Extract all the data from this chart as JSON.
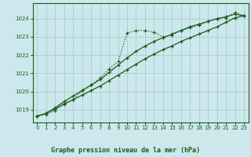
{
  "bg_color": "#cce8ec",
  "grid_color": "#aaccd4",
  "line_color": "#1a5c1a",
  "title": "Graphe pression niveau de la mer (hPa)",
  "xlim": [
    -0.5,
    23.5
  ],
  "ylim": [
    1018.3,
    1024.85
  ],
  "yticks": [
    1019,
    1020,
    1021,
    1022,
    1023,
    1024
  ],
  "xticks": [
    0,
    1,
    2,
    3,
    4,
    5,
    6,
    7,
    8,
    9,
    10,
    11,
    12,
    13,
    14,
    15,
    16,
    17,
    18,
    19,
    20,
    21,
    22,
    23
  ],
  "series1_x": [
    0,
    1,
    2,
    3,
    4,
    5,
    6,
    7,
    8,
    9,
    10,
    11,
    12,
    13,
    14,
    15,
    16,
    17,
    18,
    19,
    20,
    21,
    22,
    23
  ],
  "series1_y": [
    1018.65,
    1018.75,
    1018.95,
    1019.35,
    1019.55,
    1020.05,
    1020.35,
    1020.75,
    1021.25,
    1021.65,
    1023.2,
    1023.35,
    1023.35,
    1023.25,
    1023.0,
    1023.1,
    1023.35,
    1023.5,
    1023.65,
    1023.85,
    1024.0,
    1024.05,
    1024.35,
    1024.15
  ],
  "series2_x": [
    0,
    1,
    2,
    3,
    4,
    5,
    6,
    7,
    8,
    9,
    10,
    11,
    12,
    13,
    14,
    15,
    16,
    17,
    18,
    19,
    20,
    21,
    22,
    23
  ],
  "series2_y": [
    1018.65,
    1018.8,
    1019.05,
    1019.3,
    1019.55,
    1019.8,
    1020.05,
    1020.3,
    1020.6,
    1020.9,
    1021.2,
    1021.5,
    1021.8,
    1022.05,
    1022.3,
    1022.5,
    1022.75,
    1022.95,
    1023.15,
    1023.35,
    1023.55,
    1023.8,
    1024.05,
    1024.15
  ],
  "series3_x": [
    0,
    1,
    2,
    3,
    4,
    5,
    6,
    7,
    8,
    9,
    10,
    11,
    12,
    13,
    14,
    15,
    16,
    17,
    18,
    19,
    20,
    21,
    22,
    23
  ],
  "series3_y": [
    1018.65,
    1018.8,
    1019.1,
    1019.45,
    1019.75,
    1020.05,
    1020.35,
    1020.65,
    1021.05,
    1021.45,
    1021.85,
    1022.2,
    1022.5,
    1022.75,
    1022.95,
    1023.15,
    1023.35,
    1023.55,
    1023.7,
    1023.85,
    1024.0,
    1024.1,
    1024.25,
    1024.15
  ]
}
